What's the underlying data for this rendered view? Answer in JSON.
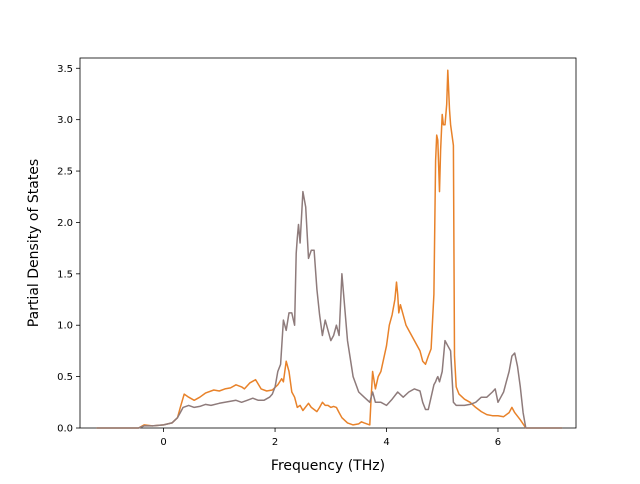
{
  "chart_data": {
    "type": "line",
    "title": "",
    "xlabel": "Frequency (THz)",
    "ylabel": "Partial Density of States",
    "xlim": [
      -1.5,
      7.4
    ],
    "ylim": [
      0,
      3.6
    ],
    "xticks": [
      0,
      2,
      4,
      6
    ],
    "yticks": [
      0.0,
      0.5,
      1.0,
      1.5,
      2.0,
      2.5,
      3.0,
      3.5
    ],
    "xtick_labels": [
      "0",
      "2",
      "4",
      "6"
    ],
    "ytick_labels": [
      "0.0",
      "0.5",
      "1.0",
      "1.5",
      "2.0",
      "2.5",
      "3.0",
      "3.5"
    ],
    "grid": false,
    "legend": false,
    "series": [
      {
        "color": "#e8822a",
        "x": [
          -1.2,
          -0.45,
          -0.35,
          -0.2,
          0.0,
          0.15,
          0.25,
          0.3,
          0.37,
          0.45,
          0.55,
          0.65,
          0.75,
          0.9,
          1.0,
          1.1,
          1.2,
          1.3,
          1.4,
          1.45,
          1.55,
          1.65,
          1.75,
          1.85,
          1.95,
          2.05,
          2.12,
          2.15,
          2.2,
          2.25,
          2.3,
          2.35,
          2.4,
          2.45,
          2.5,
          2.6,
          2.65,
          2.7,
          2.75,
          2.8,
          2.85,
          2.9,
          2.95,
          3.0,
          3.05,
          3.1,
          3.15,
          3.2,
          3.3,
          3.4,
          3.5,
          3.55,
          3.6,
          3.65,
          3.7,
          3.72,
          3.75,
          3.8,
          3.85,
          3.9,
          4.0,
          4.05,
          4.1,
          4.15,
          4.18,
          4.2,
          4.22,
          4.25,
          4.3,
          4.35,
          4.4,
          4.5,
          4.6,
          4.65,
          4.7,
          4.75,
          4.8,
          4.85,
          4.88,
          4.9,
          4.92,
          4.95,
          4.97,
          5.0,
          5.02,
          5.05,
          5.08,
          5.1,
          5.13,
          5.15,
          5.2,
          5.22,
          5.25,
          5.3,
          5.4,
          5.5,
          5.6,
          5.7,
          5.8,
          5.9,
          6.0,
          6.1,
          6.2,
          6.25,
          6.3,
          6.4,
          6.45,
          6.5,
          6.8,
          7.15
        ],
        "y": [
          0.0,
          0.0,
          0.03,
          0.02,
          0.03,
          0.05,
          0.1,
          0.2,
          0.33,
          0.3,
          0.27,
          0.3,
          0.34,
          0.37,
          0.36,
          0.38,
          0.39,
          0.42,
          0.4,
          0.38,
          0.44,
          0.47,
          0.38,
          0.36,
          0.37,
          0.42,
          0.48,
          0.45,
          0.65,
          0.55,
          0.35,
          0.3,
          0.2,
          0.22,
          0.17,
          0.24,
          0.2,
          0.18,
          0.16,
          0.2,
          0.25,
          0.22,
          0.22,
          0.2,
          0.21,
          0.2,
          0.15,
          0.1,
          0.05,
          0.03,
          0.04,
          0.06,
          0.05,
          0.04,
          0.03,
          0.25,
          0.55,
          0.38,
          0.5,
          0.55,
          0.8,
          1.0,
          1.1,
          1.25,
          1.42,
          1.3,
          1.12,
          1.2,
          1.1,
          1.0,
          0.95,
          0.85,
          0.75,
          0.65,
          0.62,
          0.7,
          0.77,
          1.3,
          2.6,
          2.85,
          2.8,
          2.3,
          2.7,
          3.05,
          2.95,
          2.95,
          3.15,
          3.48,
          3.1,
          2.95,
          2.75,
          0.7,
          0.4,
          0.33,
          0.28,
          0.25,
          0.2,
          0.16,
          0.13,
          0.12,
          0.12,
          0.11,
          0.15,
          0.2,
          0.15,
          0.08,
          0.04,
          0.0,
          0.0,
          0.0
        ]
      },
      {
        "color": "#8e7b7b",
        "x": [
          -1.2,
          -0.45,
          -0.35,
          -0.2,
          0.0,
          0.15,
          0.25,
          0.3,
          0.35,
          0.45,
          0.55,
          0.65,
          0.75,
          0.85,
          1.0,
          1.1,
          1.2,
          1.3,
          1.4,
          1.5,
          1.6,
          1.7,
          1.8,
          1.9,
          1.95,
          2.0,
          2.05,
          2.1,
          2.15,
          2.2,
          2.25,
          2.3,
          2.35,
          2.38,
          2.4,
          2.42,
          2.45,
          2.5,
          2.55,
          2.6,
          2.65,
          2.7,
          2.75,
          2.8,
          2.85,
          2.9,
          3.0,
          3.05,
          3.1,
          3.15,
          3.2,
          3.3,
          3.4,
          3.5,
          3.6,
          3.7,
          3.75,
          3.8,
          3.9,
          4.0,
          4.1,
          4.2,
          4.3,
          4.4,
          4.5,
          4.6,
          4.65,
          4.7,
          4.75,
          4.8,
          4.85,
          4.88,
          4.9,
          4.92,
          4.95,
          5.0,
          5.05,
          5.1,
          5.15,
          5.2,
          5.25,
          5.3,
          5.4,
          5.5,
          5.6,
          5.7,
          5.8,
          5.9,
          5.95,
          6.0,
          6.05,
          6.1,
          6.15,
          6.2,
          6.25,
          6.3,
          6.35,
          6.4,
          6.45,
          6.5,
          6.8,
          7.15
        ],
        "y": [
          0.0,
          0.0,
          0.02,
          0.02,
          0.03,
          0.05,
          0.1,
          0.15,
          0.2,
          0.22,
          0.2,
          0.21,
          0.23,
          0.22,
          0.24,
          0.25,
          0.26,
          0.27,
          0.25,
          0.27,
          0.29,
          0.27,
          0.27,
          0.3,
          0.33,
          0.4,
          0.55,
          0.62,
          1.05,
          0.95,
          1.12,
          1.12,
          1.0,
          1.7,
          1.85,
          1.98,
          1.8,
          2.3,
          2.15,
          1.65,
          1.73,
          1.73,
          1.35,
          1.1,
          0.9,
          1.05,
          0.85,
          0.9,
          1.0,
          0.9,
          1.5,
          0.85,
          0.5,
          0.35,
          0.3,
          0.25,
          0.35,
          0.25,
          0.25,
          0.22,
          0.28,
          0.35,
          0.3,
          0.35,
          0.38,
          0.36,
          0.25,
          0.18,
          0.18,
          0.3,
          0.42,
          0.45,
          0.48,
          0.5,
          0.45,
          0.55,
          0.85,
          0.8,
          0.75,
          0.25,
          0.22,
          0.22,
          0.22,
          0.23,
          0.25,
          0.3,
          0.3,
          0.35,
          0.38,
          0.25,
          0.3,
          0.35,
          0.45,
          0.55,
          0.7,
          0.73,
          0.6,
          0.4,
          0.15,
          0.0,
          0.0,
          0.0
        ]
      }
    ]
  }
}
